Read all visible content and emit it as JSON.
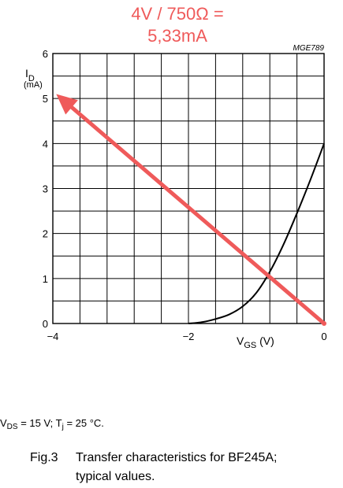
{
  "annotation": {
    "line1": "4V / 750Ω =",
    "line2": "5,33mA",
    "color": "#ef5a5a"
  },
  "figure_code": "MGE789",
  "chart_data": {
    "type": "line",
    "xlabel": {
      "main": "V",
      "sub": "GS",
      "unit": " (V)"
    },
    "ylabel": {
      "main": "I",
      "sub": "D",
      "unit": "(mA)"
    },
    "xlim": [
      -4,
      0
    ],
    "ylim": [
      0,
      6
    ],
    "x_ticks": [
      {
        "value": -4,
        "label": "−4"
      },
      {
        "value": -2,
        "label": "−2"
      },
      {
        "value": 0,
        "label": "0"
      }
    ],
    "y_ticks": [
      {
        "value": 0,
        "label": "0"
      },
      {
        "value": 1,
        "label": "1"
      },
      {
        "value": 2,
        "label": "2"
      },
      {
        "value": 3,
        "label": "3"
      },
      {
        "value": 4,
        "label": "4"
      },
      {
        "value": 5,
        "label": "5"
      },
      {
        "value": 6,
        "label": "6"
      }
    ],
    "grid": {
      "x_step": 0.4,
      "y_step": 0.5
    },
    "series": [
      {
        "x": [
          -2.0,
          -1.8,
          -1.6,
          -1.4,
          -1.2,
          -1.0,
          -0.8,
          -0.6,
          -0.4,
          -0.2,
          0.0
        ],
        "y": [
          0.0,
          0.03,
          0.1,
          0.2,
          0.38,
          0.68,
          1.15,
          1.75,
          2.45,
          3.2,
          4.0
        ],
        "color": "#000000"
      }
    ],
    "overlay_arrow": {
      "from": {
        "x": 0.0,
        "y": 0.0
      },
      "to": {
        "x": -3.95,
        "y": 5.1
      },
      "color": "#ef5a5a"
    }
  },
  "conditions": {
    "v_main": "V",
    "v_sub": "DS",
    "v_value": " = 15 V; T",
    "t_sub": "j",
    "t_value": " = 25 °C."
  },
  "caption": {
    "fig_label": "Fig.3",
    "line1": "Transfer characteristics for BF245A;",
    "line2": "typical values."
  }
}
